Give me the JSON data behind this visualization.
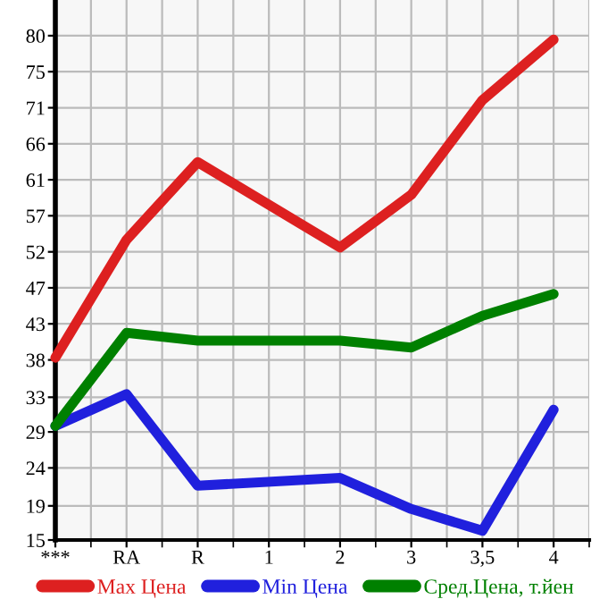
{
  "chart_data": {
    "type": "line",
    "categories": [
      "***",
      "RA",
      "R",
      "1",
      "2",
      "3",
      "3,5",
      "4"
    ],
    "series": [
      {
        "name": "Max Цена",
        "color": "#dd2020",
        "values": [
          38.5,
          53.7,
          63.7,
          null,
          52.7,
          59.5,
          71.7,
          79.5
        ]
      },
      {
        "name": "Min Цена",
        "color": "#2020dd",
        "values": [
          29.7,
          33.8,
          22.0,
          null,
          23.0,
          19.0,
          16.2,
          31.8
        ]
      },
      {
        "name": "Сред.Цена, т.йен",
        "color": "#008000",
        "values": [
          29.7,
          41.7,
          40.7,
          null,
          40.7,
          39.8,
          43.9,
          46.7
        ]
      }
    ],
    "ylim": [
      15,
      84.6
    ],
    "yticks": [
      15,
      {
        "value": 19.4,
        "label": "19"
      },
      {
        "value": 24.29,
        "label": "24"
      },
      {
        "value": 28.93,
        "label": "29"
      },
      {
        "value": 33.4,
        "label": "33"
      },
      {
        "value": 38.21,
        "label": "38"
      },
      {
        "value": 42.86,
        "label": "43"
      },
      {
        "value": 47.5,
        "label": "47"
      },
      {
        "value": 52.14,
        "label": "52"
      },
      {
        "value": 56.79,
        "label": "57"
      },
      {
        "value": 61.43,
        "label": "61"
      },
      {
        "value": 66.07,
        "label": "66"
      },
      {
        "value": 70.71,
        "label": "71"
      },
      {
        "value": 75.36,
        "label": "75"
      },
      80
    ],
    "grid": true,
    "legend": "bottom",
    "marker": "none",
    "line_style": "solid"
  }
}
